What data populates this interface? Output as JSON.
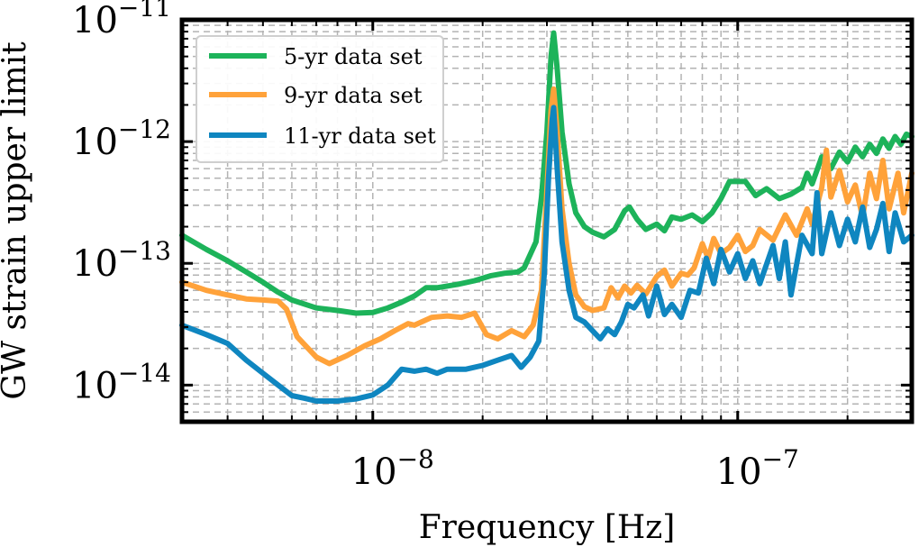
{
  "chart_data": {
    "type": "line",
    "title": "",
    "xlabel": "Frequency [Hz]",
    "ylabel": "GW strain upper limit",
    "xscale": "log",
    "yscale": "log",
    "xlim": [
      3e-09,
      3e-07
    ],
    "ylim": [
      5e-15,
      1e-11
    ],
    "grid": true,
    "legend_position": "top-left",
    "x_major_ticks": [
      {
        "value": 1e-08,
        "base": "10",
        "exp": "−8"
      },
      {
        "value": 1e-07,
        "base": "10",
        "exp": "−7"
      }
    ],
    "y_major_ticks": [
      {
        "value": 1e-14,
        "base": "10",
        "exp": "−14"
      },
      {
        "value": 1e-13,
        "base": "10",
        "exp": "−13"
      },
      {
        "value": 1e-12,
        "base": "10",
        "exp": "−12"
      },
      {
        "value": 1e-11,
        "base": "10",
        "exp": "−11"
      }
    ],
    "series": [
      {
        "name": "5-yr data set",
        "color": "#1db35a",
        "points": [
          [
            3e-09,
            1.7e-13
          ],
          [
            3.5e-09,
            1.3e-13
          ],
          [
            4e-09,
            1.05e-13
          ],
          [
            4.5e-09,
            8.5e-14
          ],
          [
            5e-09,
            7e-14
          ],
          [
            5.5e-09,
            5.8e-14
          ],
          [
            6e-09,
            5e-14
          ],
          [
            7e-09,
            4.3e-14
          ],
          [
            8e-09,
            4.1e-14
          ],
          [
            9e-09,
            3.9e-14
          ],
          [
            1e-08,
            3.95e-14
          ],
          [
            1.1e-08,
            4.3e-14
          ],
          [
            1.2e-08,
            4.8e-14
          ],
          [
            1.3e-08,
            5.4e-14
          ],
          [
            1.4e-08,
            6.3e-14
          ],
          [
            1.5e-08,
            6.3e-14
          ],
          [
            1.7e-08,
            6.7e-14
          ],
          [
            1.9e-08,
            7.2e-14
          ],
          [
            2.1e-08,
            7.9e-14
          ],
          [
            2.3e-08,
            8.3e-14
          ],
          [
            2.5e-08,
            8.5e-14
          ],
          [
            2.6e-08,
            9.2e-14
          ],
          [
            2.8e-08,
            1.5e-13
          ],
          [
            2.9e-08,
            3.5e-13
          ],
          [
            3e-08,
            1.2e-12
          ],
          [
            3.08e-08,
            5e-12
          ],
          [
            3.13e-08,
            7.8e-12
          ],
          [
            3.2e-08,
            4e-12
          ],
          [
            3.3e-08,
            1.2e-12
          ],
          [
            3.45e-08,
            4.5e-13
          ],
          [
            3.6e-08,
            2.6e-13
          ],
          [
            3.8e-08,
            2e-13
          ],
          [
            4e-08,
            1.8e-13
          ],
          [
            4.3e-08,
            1.65e-13
          ],
          [
            4.6e-08,
            1.9e-13
          ],
          [
            4.9e-08,
            2.7e-13
          ],
          [
            5.05e-08,
            2.9e-13
          ],
          [
            5.3e-08,
            2.3e-13
          ],
          [
            5.6e-08,
            1.9e-13
          ],
          [
            6e-08,
            2.1e-13
          ],
          [
            6.3e-08,
            1.85e-13
          ],
          [
            6.6e-08,
            2.4e-13
          ],
          [
            7e-08,
            2.3e-13
          ],
          [
            7.5e-08,
            2.5e-13
          ],
          [
            8e-08,
            2.2e-13
          ],
          [
            8.5e-08,
            2.6e-13
          ],
          [
            9e-08,
            3.4e-13
          ],
          [
            9.5e-08,
            4.7e-13
          ],
          [
            1.05e-07,
            4.7e-13
          ],
          [
            1.12e-07,
            3.6e-13
          ],
          [
            1.2e-07,
            4.1e-13
          ],
          [
            1.3e-07,
            3.4e-13
          ],
          [
            1.4e-07,
            3.7e-13
          ],
          [
            1.5e-07,
            4.2e-13
          ],
          [
            1.55e-07,
            5.5e-13
          ],
          [
            1.6e-07,
            4.5e-13
          ],
          [
            1.7e-07,
            7.5e-13
          ],
          [
            1.8e-07,
            6e-13
          ],
          [
            1.9e-07,
            8.2e-13
          ],
          [
            2e-07,
            6.8e-13
          ],
          [
            2.1e-07,
            9e-13
          ],
          [
            2.2e-07,
            7.5e-13
          ],
          [
            2.3e-07,
            9.5e-13
          ],
          [
            2.4e-07,
            8e-13
          ],
          [
            2.5e-07,
            1.05e-12
          ],
          [
            2.6e-07,
            8.8e-13
          ],
          [
            2.7e-07,
            1.1e-12
          ],
          [
            2.8e-07,
            9.5e-13
          ],
          [
            2.9e-07,
            1.15e-12
          ],
          [
            3e-07,
            1.1e-12
          ]
        ]
      },
      {
        "name": "9-yr data set",
        "color": "#ffa23a",
        "points": [
          [
            3e-09,
            7e-14
          ],
          [
            3.5e-09,
            6e-14
          ],
          [
            4e-09,
            5.5e-14
          ],
          [
            4.5e-09,
            5.1e-14
          ],
          [
            5e-09,
            5e-14
          ],
          [
            5.5e-09,
            4.9e-14
          ],
          [
            5.8e-09,
            4.2e-14
          ],
          [
            6.2e-09,
            2.5e-14
          ],
          [
            7e-09,
            1.7e-14
          ],
          [
            7.6e-09,
            1.5e-14
          ],
          [
            8.5e-09,
            1.75e-14
          ],
          [
            9.5e-09,
            2.1e-14
          ],
          [
            1.05e-08,
            2.4e-14
          ],
          [
            1.15e-08,
            2.8e-14
          ],
          [
            1.25e-08,
            3.2e-14
          ],
          [
            1.3e-08,
            3.1e-14
          ],
          [
            1.45e-08,
            3.6e-14
          ],
          [
            1.6e-08,
            3.7e-14
          ],
          [
            1.75e-08,
            3.6e-14
          ],
          [
            1.9e-08,
            3.9e-14
          ],
          [
            2.05e-08,
            2.6e-14
          ],
          [
            2.2e-08,
            2.4e-14
          ],
          [
            2.4e-08,
            2.8e-14
          ],
          [
            2.6e-08,
            2.5e-14
          ],
          [
            2.75e-08,
            3.1e-14
          ],
          [
            2.9e-08,
            6e-14
          ],
          [
            3e-08,
            4e-13
          ],
          [
            3.08e-08,
            1.8e-12
          ],
          [
            3.13e-08,
            2.7e-12
          ],
          [
            3.2e-08,
            1.2e-12
          ],
          [
            3.3e-08,
            2.8e-13
          ],
          [
            3.45e-08,
            1e-13
          ],
          [
            3.6e-08,
            5.5e-14
          ],
          [
            3.8e-08,
            4.4e-14
          ],
          [
            4e-08,
            4.1e-14
          ],
          [
            4.3e-08,
            4.3e-14
          ],
          [
            4.5e-08,
            6.3e-14
          ],
          [
            4.7e-08,
            5.2e-14
          ],
          [
            4.9e-08,
            6.5e-14
          ],
          [
            5.1e-08,
            5.7e-14
          ],
          [
            5.3e-08,
            6.6e-14
          ],
          [
            5.6e-08,
            5.6e-14
          ],
          [
            6e-08,
            7.8e-14
          ],
          [
            6.3e-08,
            8.8e-14
          ],
          [
            6.6e-08,
            6.5e-14
          ],
          [
            7e-08,
            8.3e-14
          ],
          [
            7.3e-08,
            8e-14
          ],
          [
            7.6e-08,
            9.2e-14
          ],
          [
            8e-08,
            1.45e-13
          ],
          [
            8.3e-08,
            1.1e-13
          ],
          [
            8.6e-08,
            1.6e-13
          ],
          [
            9e-08,
            1.2e-13
          ],
          [
            9.5e-08,
            1.35e-13
          ],
          [
            1e-07,
            1.7e-13
          ],
          [
            1.05e-07,
            1.25e-13
          ],
          [
            1.1e-07,
            1.4e-13
          ],
          [
            1.15e-07,
            1.9e-13
          ],
          [
            1.25e-07,
            1.55e-13
          ],
          [
            1.35e-07,
            2.5e-13
          ],
          [
            1.45e-07,
            1.7e-13
          ],
          [
            1.55e-07,
            2.8e-13
          ],
          [
            1.6e-07,
            2.1e-13
          ],
          [
            1.7e-07,
            4.2e-13
          ],
          [
            1.75e-07,
            8.5e-13
          ],
          [
            1.8e-07,
            3.5e-13
          ],
          [
            1.9e-07,
            5.8e-13
          ],
          [
            2e-07,
            3.2e-13
          ],
          [
            2.1e-07,
            4.4e-13
          ],
          [
            2.2e-07,
            2.4e-13
          ],
          [
            2.3e-07,
            5.5e-13
          ],
          [
            2.4e-07,
            3.4e-13
          ],
          [
            2.5e-07,
            7e-13
          ],
          [
            2.6e-07,
            2.8e-13
          ],
          [
            2.75e-07,
            5.5e-13
          ],
          [
            2.85e-07,
            2.6e-13
          ],
          [
            3e-07,
            5.5e-13
          ]
        ]
      },
      {
        "name": "11-yr data set",
        "color": "#0f86c0",
        "points": [
          [
            3e-09,
            3.1e-14
          ],
          [
            3.5e-09,
            2.6e-14
          ],
          [
            4e-09,
            2.2e-14
          ],
          [
            4.5e-09,
            1.6e-14
          ],
          [
            5e-09,
            1.25e-14
          ],
          [
            5.5e-09,
            1e-14
          ],
          [
            6e-09,
            8.2e-15
          ],
          [
            6.5e-09,
            7.8e-15
          ],
          [
            7e-09,
            7.4e-15
          ],
          [
            8e-09,
            7.4e-15
          ],
          [
            9e-09,
            7.7e-15
          ],
          [
            1e-08,
            8.3e-15
          ],
          [
            1.1e-08,
            1e-14
          ],
          [
            1.2e-08,
            1.35e-14
          ],
          [
            1.3e-08,
            1.3e-14
          ],
          [
            1.4e-08,
            1.35e-14
          ],
          [
            1.5e-08,
            1.25e-14
          ],
          [
            1.6e-08,
            1.35e-14
          ],
          [
            1.8e-08,
            1.35e-14
          ],
          [
            2e-08,
            1.45e-14
          ],
          [
            2.2e-08,
            1.6e-14
          ],
          [
            2.4e-08,
            1.75e-14
          ],
          [
            2.55e-08,
            1.4e-14
          ],
          [
            2.7e-08,
            1.7e-14
          ],
          [
            2.85e-08,
            2.3e-14
          ],
          [
            2.95e-08,
            8e-14
          ],
          [
            3.03e-08,
            5e-13
          ],
          [
            3.1e-08,
            1.5e-12
          ],
          [
            3.13e-08,
            1.9e-12
          ],
          [
            3.2e-08,
            6e-13
          ],
          [
            3.3e-08,
            1.5e-13
          ],
          [
            3.45e-08,
            6e-14
          ],
          [
            3.6e-08,
            3.6e-14
          ],
          [
            3.8e-08,
            3.3e-14
          ],
          [
            4e-08,
            2.8e-14
          ],
          [
            4.2e-08,
            2.4e-14
          ],
          [
            4.4e-08,
            2.9e-14
          ],
          [
            4.6e-08,
            2.6e-14
          ],
          [
            4.8e-08,
            3.3e-14
          ],
          [
            5e-08,
            4.6e-14
          ],
          [
            5.2e-08,
            4.3e-14
          ],
          [
            5.5e-08,
            5.5e-14
          ],
          [
            5.7e-08,
            3.7e-14
          ],
          [
            6e-08,
            6.5e-14
          ],
          [
            6.3e-08,
            3.8e-14
          ],
          [
            6.6e-08,
            4.6e-14
          ],
          [
            7e-08,
            3.6e-14
          ],
          [
            7.4e-08,
            6e-14
          ],
          [
            7.8e-08,
            5.7e-14
          ],
          [
            8.2e-08,
            1.1e-13
          ],
          [
            8.6e-08,
            6.8e-14
          ],
          [
            9e-08,
            1.3e-13
          ],
          [
            9.5e-08,
            8.5e-14
          ],
          [
            1e-07,
            1.2e-13
          ],
          [
            1.05e-07,
            7.5e-14
          ],
          [
            1.1e-07,
            1.05e-13
          ],
          [
            1.15e-07,
            6.8e-14
          ],
          [
            1.25e-07,
            1.4e-13
          ],
          [
            1.3e-07,
            7.5e-14
          ],
          [
            1.35e-07,
            1.5e-13
          ],
          [
            1.4e-07,
            5.5e-14
          ],
          [
            1.5e-07,
            1.7e-13
          ],
          [
            1.6e-07,
            1.2e-13
          ],
          [
            1.65e-07,
            3.8e-13
          ],
          [
            1.7e-07,
            1.2e-13
          ],
          [
            1.8e-07,
            2.6e-13
          ],
          [
            1.9e-07,
            1.4e-13
          ],
          [
            2e-07,
            2.3e-13
          ],
          [
            2.1e-07,
            1.5e-13
          ],
          [
            2.2e-07,
            2.9e-13
          ],
          [
            2.3e-07,
            1.35e-13
          ],
          [
            2.4e-07,
            1.9e-13
          ],
          [
            2.5e-07,
            3.1e-13
          ],
          [
            2.6e-07,
            1.25e-13
          ],
          [
            2.7e-07,
            2.6e-13
          ],
          [
            2.85e-07,
            1.5e-13
          ],
          [
            3e-07,
            1.7e-13
          ]
        ]
      }
    ]
  }
}
